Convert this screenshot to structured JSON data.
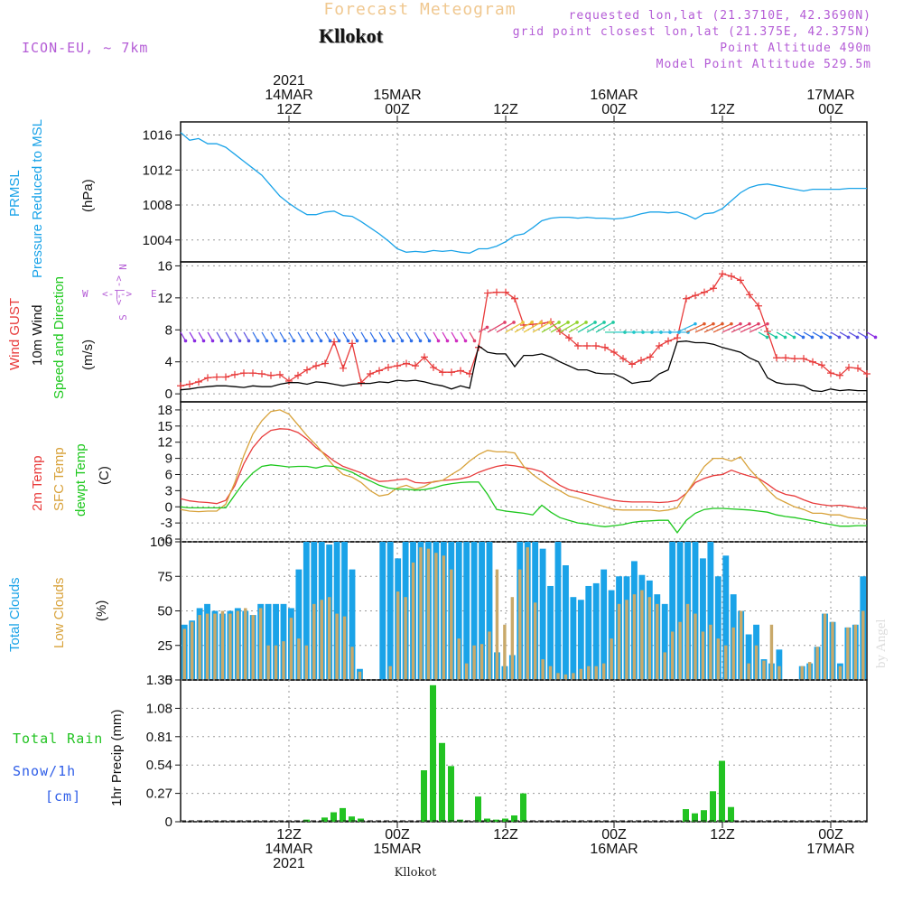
{
  "header": {
    "title": "Forecast Meteogram",
    "location": "Kllokot",
    "model": "ICON-EU, ~ 7km",
    "requested": "requested lon,lat (21.3710E, 42.3690N)",
    "grid": "grid point closest lon,lat (21.375E, 42.375N)",
    "point_alt": "Point Altitude 490m",
    "model_alt": "Model Point Altitude 529.5m",
    "watermark": "by Angel",
    "footer_location": "Kllokot"
  },
  "colors": {
    "pressure": "#1aa3e8",
    "gust": "#e83b3b",
    "wind": "#000000",
    "temp": "#e83b3b",
    "sfc": "#d8a23a",
    "dewpt": "#1ec81e",
    "total_clouds": "#1aa3e8",
    "low_clouds": "#c9a96a",
    "rain": "#22c322",
    "label_purple": "#b45cd6",
    "label_blue": "#2f5ee8",
    "title_gold": "#f0c890"
  },
  "time_axis": {
    "top_labels": [
      {
        "t": 12,
        "lines": [
          "2021",
          "14MAR",
          "12Z"
        ]
      },
      {
        "t": 24,
        "lines": [
          "15MAR",
          "00Z"
        ]
      },
      {
        "t": 36,
        "lines": [
          "12Z"
        ]
      },
      {
        "t": 48,
        "lines": [
          "16MAR",
          "00Z"
        ]
      },
      {
        "t": 60,
        "lines": [
          "12Z"
        ]
      },
      {
        "t": 72,
        "lines": [
          "17MAR",
          "00Z"
        ]
      }
    ],
    "bottom_labels": [
      {
        "t": 12,
        "lines": [
          "12Z",
          "14MAR",
          "2021"
        ]
      },
      {
        "t": 24,
        "lines": [
          "00Z",
          "15MAR"
        ]
      },
      {
        "t": 36,
        "lines": [
          "12Z"
        ]
      },
      {
        "t": 48,
        "lines": [
          "00Z",
          "16MAR"
        ]
      },
      {
        "t": 60,
        "lines": [
          "12Z"
        ]
      },
      {
        "t": 72,
        "lines": [
          "00Z",
          "17MAR"
        ]
      }
    ]
  },
  "panel_labels": {
    "pressure": {
      "left1": "PRMSL",
      "left2": "Pressure Reduced to MSL",
      "unit": "(hPa)"
    },
    "wind": {
      "gust": "Wind GUST",
      "wind": "10m Wind",
      "speed": "Speed and Direction",
      "unit": "(m/s)",
      "compass_n": "N",
      "compass_s": "S",
      "compass_w": "W",
      "compass_e": "E",
      "compass_ns": "<-|->",
      "compass_we": "<-|->"
    },
    "temp": {
      "t2m": "2m Temp",
      "sfc": "SFC Temp",
      "dew": "dewpt Temp",
      "unit": "(C)"
    },
    "clouds": {
      "total": "Total Clouds",
      "low": "Low Clouds",
      "unit": "(%)"
    },
    "precip": {
      "rain": "Total  Rain",
      "snow": "Snow/1h",
      "snow_unit": "[cm]",
      "ylabel": "1hr Precip (mm)"
    }
  },
  "chart_data": [
    {
      "type": "line",
      "name": "pressure",
      "ylabel": "(hPa)",
      "ylim": [
        1001.5,
        1017.5
      ],
      "yticks": [
        1004,
        1008,
        1012,
        1016
      ],
      "series": [
        {
          "name": "PRMSL",
          "x": [
            0,
            1,
            2,
            3,
            4,
            5,
            6,
            7,
            8,
            9,
            10,
            11,
            12,
            13,
            14,
            15,
            16,
            17,
            18,
            19,
            20,
            21,
            22,
            23,
            24,
            25,
            26,
            27,
            28,
            29,
            30,
            31,
            32,
            33,
            34,
            35,
            36,
            37,
            38,
            39,
            40,
            41,
            42,
            43,
            44,
            45,
            46,
            47,
            48,
            49,
            50,
            51,
            52,
            53,
            54,
            55,
            56,
            57,
            58,
            59,
            60,
            61,
            62,
            63,
            64,
            65,
            66,
            67,
            68,
            69,
            70,
            71,
            72,
            73,
            74,
            75,
            76
          ],
          "values": [
            1016.3,
            1015.4,
            1015.6,
            1015.0,
            1015.0,
            1014.6,
            1013.8,
            1013.0,
            1012.2,
            1011.4,
            1010.2,
            1009.0,
            1008.2,
            1007.5,
            1006.9,
            1006.9,
            1007.2,
            1007.3,
            1006.8,
            1006.7,
            1006.1,
            1005.4,
            1004.7,
            1003.9,
            1003.0,
            1002.6,
            1002.7,
            1002.6,
            1002.8,
            1002.7,
            1002.8,
            1002.6,
            1002.5,
            1003.0,
            1003.0,
            1003.3,
            1003.8,
            1004.5,
            1004.7,
            1005.4,
            1006.2,
            1006.5,
            1006.6,
            1006.6,
            1006.5,
            1006.6,
            1006.5,
            1006.5,
            1006.4,
            1006.5,
            1006.7,
            1007.0,
            1007.2,
            1007.2,
            1007.1,
            1007.2,
            1006.9,
            1006.4,
            1007.0,
            1007.1,
            1007.6,
            1008.5,
            1009.4,
            1010.0,
            1010.3,
            1010.4,
            1010.2,
            1010.0,
            1009.8,
            1009.6,
            1009.8,
            1009.8,
            1009.8,
            1009.8,
            1009.9,
            1009.9,
            1009.9
          ]
        }
      ]
    },
    {
      "type": "line",
      "name": "wind",
      "ylabel": "(m/s)",
      "ylim": [
        -1,
        16.5
      ],
      "yticks": [
        0,
        4,
        8,
        12,
        16
      ],
      "series": [
        {
          "name": "Wind GUST",
          "values": [
            1.0,
            1.2,
            1.5,
            2.0,
            2.1,
            2.1,
            2.4,
            2.6,
            2.6,
            2.5,
            2.3,
            2.4,
            1.6,
            2.3,
            3.0,
            3.5,
            3.8,
            6.5,
            3.2,
            6.3,
            1.4,
            2.5,
            2.9,
            3.3,
            3.5,
            3.8,
            3.5,
            4.6,
            3.3,
            2.7,
            2.7,
            2.9,
            2.5,
            5.8,
            12.6,
            12.7,
            12.7,
            11.9,
            8.6,
            8.7,
            8.8,
            9.0,
            7.8,
            7.0,
            6.0,
            6.0,
            6.0,
            5.8,
            5.2,
            4.4,
            3.7,
            4.2,
            4.6,
            6.0,
            6.6,
            7.0,
            11.9,
            12.3,
            12.7,
            13.2,
            15.0,
            14.7,
            14.2,
            12.4,
            11.0,
            7.8,
            4.5,
            4.5,
            4.4,
            4.4,
            4.0,
            3.6,
            2.6,
            2.3,
            3.3,
            3.2,
            2.5
          ]
        },
        {
          "name": "10m Wind",
          "values": [
            0.5,
            0.6,
            0.8,
            0.9,
            1.0,
            1.0,
            0.9,
            0.8,
            1.0,
            0.9,
            0.9,
            1.2,
            1.4,
            1.4,
            1.2,
            1.5,
            1.4,
            1.2,
            1.0,
            1.2,
            1.3,
            1.3,
            1.5,
            1.4,
            1.7,
            1.6,
            1.7,
            1.5,
            1.2,
            1.0,
            0.6,
            1.0,
            0.7,
            6.0,
            5.2,
            5.0,
            5.0,
            3.4,
            4.8,
            4.8,
            5.0,
            4.6,
            4.0,
            3.5,
            3.0,
            3.0,
            2.6,
            2.5,
            2.5,
            2.0,
            1.3,
            1.5,
            1.6,
            2.5,
            3.0,
            6.5,
            6.6,
            6.4,
            6.4,
            6.2,
            5.8,
            5.5,
            5.2,
            4.5,
            4.0,
            2.0,
            1.4,
            1.2,
            1.2,
            1.0,
            0.4,
            0.3,
            0.6,
            0.4,
            0.5,
            0.4,
            0.4
          ]
        }
      ]
    },
    {
      "type": "line",
      "name": "temperature",
      "ylabel": "(C)",
      "ylim": [
        -6.5,
        19.5
      ],
      "yticks": [
        -6,
        -3,
        0,
        3,
        6,
        9,
        12,
        15,
        18
      ],
      "series": [
        {
          "name": "2m Temp",
          "values": [
            1.5,
            1.1,
            0.9,
            0.8,
            0.6,
            1.2,
            3.9,
            8.0,
            11.0,
            13.0,
            14.2,
            14.5,
            14.4,
            13.8,
            12.6,
            11.0,
            9.8,
            8.5,
            7.5,
            6.9,
            6.3,
            5.4,
            4.7,
            4.8,
            5.0,
            5.2,
            4.5,
            4.4,
            4.6,
            4.9,
            5.0,
            5.2,
            5.6,
            6.4,
            7.0,
            7.5,
            7.8,
            7.6,
            7.3,
            7.0,
            6.5,
            5.2,
            4.0,
            3.2,
            2.8,
            2.4,
            2.0,
            1.6,
            1.2,
            1.0,
            0.9,
            0.9,
            0.9,
            0.8,
            0.9,
            1.2,
            2.5,
            4.5,
            5.3,
            5.8,
            6.0,
            6.8,
            6.2,
            5.7,
            5.3,
            4.2,
            3.0,
            2.3,
            2.0,
            1.3,
            0.7,
            0.4,
            0.2,
            0.3,
            0.1,
            -0.2,
            -0.3
          ]
        },
        {
          "name": "SFC Temp",
          "values": [
            -0.5,
            -0.8,
            -0.9,
            -0.8,
            -0.8,
            0.5,
            4.5,
            9.5,
            13.5,
            16.0,
            17.7,
            18.0,
            17.2,
            15.2,
            13.2,
            11.5,
            9.5,
            7.5,
            6.0,
            5.5,
            4.5,
            3.0,
            2.0,
            2.3,
            3.5,
            4.0,
            3.3,
            3.8,
            4.7,
            4.9,
            6.0,
            7.0,
            8.5,
            9.7,
            10.5,
            10.2,
            10.2,
            10.0,
            7.5,
            6.0,
            4.8,
            3.8,
            3.0,
            2.0,
            1.6,
            1.0,
            0.5,
            0.0,
            -0.5,
            -0.6,
            -0.6,
            -0.6,
            -0.6,
            -0.8,
            -0.6,
            -0.2,
            2.5,
            5.0,
            7.5,
            9.0,
            9.0,
            8.5,
            9.3,
            7.0,
            5.2,
            3.2,
            1.6,
            0.8,
            0.0,
            -0.5,
            -1.2,
            -1.2,
            -1.5,
            -1.5,
            -2.0,
            -2.2,
            -2.4
          ]
        },
        {
          "name": "dewpt Temp",
          "values": [
            0.0,
            -0.2,
            -0.2,
            -0.2,
            -0.2,
            -0.2,
            2.2,
            4.5,
            6.3,
            7.5,
            7.8,
            7.6,
            7.4,
            7.5,
            7.5,
            7.2,
            7.6,
            7.5,
            7.0,
            6.4,
            5.5,
            4.8,
            4.0,
            3.5,
            3.3,
            3.3,
            3.1,
            3.2,
            3.5,
            4.0,
            4.3,
            4.5,
            4.6,
            4.6,
            2.3,
            -0.5,
            -0.8,
            -1.0,
            -1.2,
            -1.5,
            0.3,
            -1.0,
            -2.0,
            -2.5,
            -3.0,
            -3.2,
            -3.5,
            -3.7,
            -3.5,
            -3.3,
            -2.9,
            -2.7,
            -2.6,
            -2.5,
            -2.5,
            -4.8,
            -2.5,
            -1.2,
            -0.5,
            -0.3,
            -0.3,
            -0.4,
            -0.5,
            -0.6,
            -0.8,
            -1.0,
            -1.5,
            -1.8,
            -2.0,
            -2.3,
            -2.6,
            -3.0,
            -3.3,
            -3.6,
            -3.6,
            -3.5,
            -3.5
          ]
        }
      ]
    },
    {
      "type": "bar",
      "name": "clouds",
      "ylabel": "(%)",
      "ylim": [
        0,
        100
      ],
      "yticks": [
        0,
        25,
        50,
        75,
        100
      ],
      "series": [
        {
          "name": "Total Clouds",
          "values": [
            40,
            43,
            52,
            55,
            50,
            48,
            50,
            52,
            50,
            47,
            55,
            55,
            55,
            55,
            52,
            80,
            100,
            100,
            100,
            98,
            100,
            100,
            80,
            8,
            0,
            0,
            100,
            100,
            88,
            100,
            100,
            100,
            100,
            100,
            100,
            100,
            100,
            100,
            100,
            100,
            100,
            20,
            10,
            18,
            100,
            100,
            100,
            95,
            68,
            100,
            83,
            60,
            58,
            68,
            70,
            80,
            65,
            75,
            75,
            86,
            76,
            72,
            62,
            55,
            100,
            100,
            100,
            100,
            88,
            100,
            75,
            90,
            62,
            50,
            33,
            40,
            15,
            12,
            22,
            0,
            0,
            10,
            12,
            24,
            48,
            42,
            12,
            38,
            40,
            75
          ]
        },
        {
          "name": "Low Clouds",
          "values": [
            37,
            42,
            47,
            48,
            48,
            50,
            48,
            50,
            52,
            47,
            52,
            25,
            25,
            28,
            45,
            30,
            25,
            55,
            58,
            60,
            48,
            46,
            24,
            6,
            0,
            0,
            0,
            10,
            64,
            60,
            85,
            96,
            95,
            92,
            90,
            80,
            30,
            12,
            25,
            26,
            35,
            80,
            40,
            60,
            80,
            96,
            56,
            15,
            10,
            5,
            4,
            5,
            8,
            10,
            10,
            12,
            30,
            55,
            58,
            62,
            65,
            60,
            55,
            20,
            35,
            42,
            55,
            48,
            35,
            40,
            30,
            25,
            38,
            50,
            12,
            25,
            14,
            40,
            10,
            0,
            0,
            10,
            13,
            24,
            48,
            42,
            10,
            38,
            40,
            50
          ]
        }
      ]
    },
    {
      "type": "bar",
      "name": "precipitation",
      "ylabel": "1hr Precip (mm)",
      "ylim": [
        0,
        1.35
      ],
      "yticks": [
        0,
        0.27,
        0.54,
        0.81,
        1.08,
        1.35
      ],
      "series": [
        {
          "name": "Total Rain",
          "x": [
            14,
            16,
            17,
            18,
            19,
            20,
            27,
            28,
            29,
            30,
            31,
            33,
            34,
            35,
            36,
            37,
            38,
            56,
            57,
            58,
            59,
            60,
            61
          ],
          "values": [
            0.02,
            0.04,
            0.09,
            0.13,
            0.05,
            0.03,
            0.49,
            1.3,
            0.75,
            0.53,
            0.02,
            0.24,
            0.03,
            0.02,
            0.03,
            0.06,
            0.27,
            0.12,
            0.08,
            0.11,
            0.29,
            0.58,
            0.14
          ]
        }
      ]
    }
  ]
}
